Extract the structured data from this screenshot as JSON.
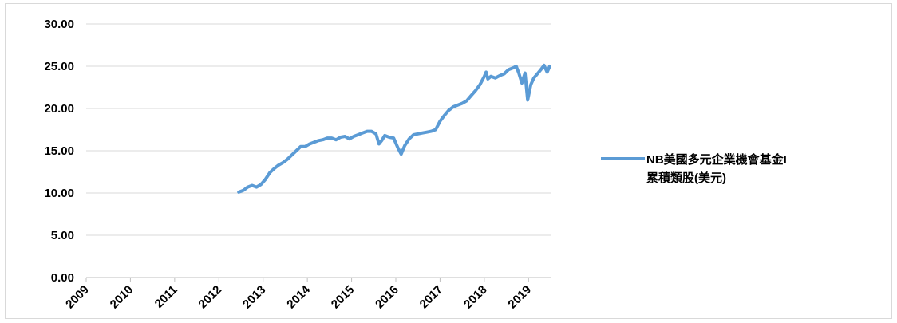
{
  "chart_data": {
    "type": "line",
    "title": "",
    "xlabel": "",
    "ylabel": "",
    "ylim": [
      0,
      30
    ],
    "xlim": [
      2009,
      2019.5
    ],
    "y_ticks": [
      "0.00",
      "5.00",
      "10.00",
      "15.00",
      "20.00",
      "25.00",
      "30.00"
    ],
    "x_ticks": [
      "2009",
      "2010",
      "2011",
      "2012",
      "2013",
      "2014",
      "2015",
      "2016",
      "2017",
      "2018",
      "2019"
    ],
    "grid": "horizontal",
    "legend_position": "right",
    "line_color": "#5b9bd5",
    "series": [
      {
        "name": "NB美國多元企業機會基金I累積類股(美元)",
        "legend_lines": [
          "NB美國多元企業機會基金I",
          "累積類股(美元)"
        ],
        "x": [
          2012.45,
          2012.55,
          2012.65,
          2012.75,
          2012.85,
          2012.95,
          2013.05,
          2013.15,
          2013.25,
          2013.35,
          2013.45,
          2013.55,
          2013.65,
          2013.75,
          2013.85,
          2013.95,
          2014.05,
          2014.15,
          2014.25,
          2014.35,
          2014.45,
          2014.55,
          2014.65,
          2014.75,
          2014.85,
          2014.95,
          2015.05,
          2015.15,
          2015.25,
          2015.35,
          2015.45,
          2015.55,
          2015.62,
          2015.68,
          2015.75,
          2015.85,
          2015.95,
          2016.05,
          2016.12,
          2016.2,
          2016.3,
          2016.4,
          2016.5,
          2016.6,
          2016.7,
          2016.8,
          2016.9,
          2017.0,
          2017.1,
          2017.2,
          2017.3,
          2017.4,
          2017.5,
          2017.6,
          2017.7,
          2017.8,
          2017.9,
          2018.0,
          2018.04,
          2018.08,
          2018.15,
          2018.25,
          2018.35,
          2018.45,
          2018.55,
          2018.65,
          2018.72,
          2018.78,
          2018.85,
          2018.92,
          2018.98,
          2019.05,
          2019.12,
          2019.2,
          2019.28,
          2019.35,
          2019.42,
          2019.48
        ],
        "y": [
          10.1,
          10.3,
          10.7,
          10.9,
          10.7,
          11.0,
          11.6,
          12.4,
          12.9,
          13.3,
          13.6,
          14.0,
          14.5,
          15.0,
          15.5,
          15.5,
          15.8,
          16.0,
          16.2,
          16.3,
          16.5,
          16.5,
          16.3,
          16.6,
          16.7,
          16.4,
          16.7,
          16.9,
          17.1,
          17.3,
          17.3,
          17.0,
          15.8,
          16.2,
          16.8,
          16.6,
          16.5,
          15.3,
          14.6,
          15.6,
          16.4,
          16.9,
          17.0,
          17.1,
          17.2,
          17.3,
          17.5,
          18.5,
          19.2,
          19.8,
          20.2,
          20.4,
          20.6,
          20.9,
          21.5,
          22.1,
          22.8,
          23.8,
          24.3,
          23.5,
          23.8,
          23.6,
          23.9,
          24.1,
          24.6,
          24.8,
          25.0,
          24.2,
          23.0,
          24.2,
          21.0,
          22.8,
          23.6,
          24.1,
          24.6,
          25.1,
          24.3,
          25.0
        ]
      }
    ]
  }
}
